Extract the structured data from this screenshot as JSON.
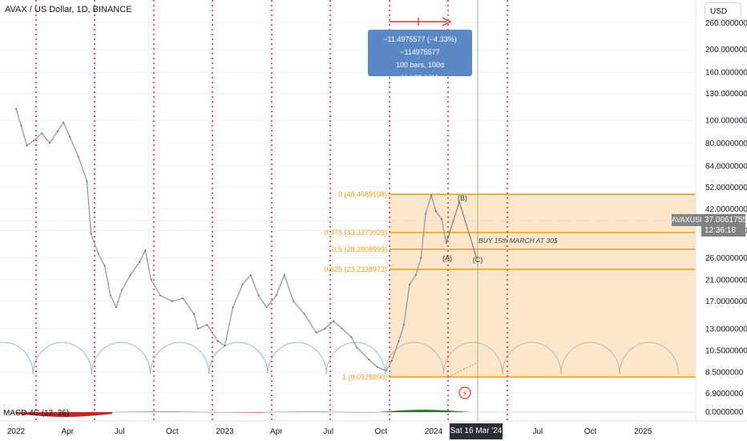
{
  "header": {
    "title": "AVAX / US Dollar, 1D, BINANCE",
    "currency_button": "USD"
  },
  "measure_tooltip": {
    "line1": "−11.4975577 (−4.33%) −114975577",
    "line2": "100 bars, 100d",
    "line3": "Vol 29.66M"
  },
  "price_tag": {
    "symbol": "AVAXUSD",
    "price": "37.0061755",
    "countdown": "12:36:18"
  },
  "indicator": {
    "label": "MACD 4C (12, 26)"
  },
  "date_tag": "Sat 16 Mar '24",
  "colors": {
    "cycle_line": "#e53935",
    "fib_fill": "#fde7cc",
    "fib_line": "#f59c1a",
    "arc": "#90b8e0",
    "arc_future": "#b5b5b5",
    "price_line": "#9a9a9a",
    "macd_pos": "#2e7d32",
    "macd_neg": "#c62828",
    "tooltip": "#5b88c5",
    "vertical_green": "#43a047"
  },
  "chart_data": {
    "type": "line",
    "scale": "log",
    "y_ticks": [
      "260.0000000",
      "200.0000000",
      "160.0000000",
      "130.0000000",
      "100.0000000",
      "80.0000000",
      "64.0000000",
      "52.0000000",
      "42.0000000",
      "34.0000000",
      "26.0000000",
      "21.0000000",
      "17.0000000",
      "13.0000000",
      "10.5000000",
      "8.5000000",
      "6.9000000"
    ],
    "macd_tick": "0.0000000",
    "x_ticks": [
      "2022",
      "Apr",
      "Jul",
      "Oct",
      "2023",
      "Apr",
      "Jul",
      "Oct",
      "2024",
      "Jul",
      "Oct",
      "2025"
    ],
    "price_series": [
      {
        "date": "2022-01-01",
        "close": 112
      },
      {
        "date": "2022-01-10",
        "close": 95
      },
      {
        "date": "2022-01-20",
        "close": 78
      },
      {
        "date": "2022-02-01",
        "close": 82
      },
      {
        "date": "2022-02-15",
        "close": 88
      },
      {
        "date": "2022-03-01",
        "close": 80
      },
      {
        "date": "2022-03-15",
        "close": 90
      },
      {
        "date": "2022-03-25",
        "close": 98
      },
      {
        "date": "2022-04-05",
        "close": 85
      },
      {
        "date": "2022-04-20",
        "close": 70
      },
      {
        "date": "2022-05-05",
        "close": 55
      },
      {
        "date": "2022-05-12",
        "close": 33
      },
      {
        "date": "2022-05-25",
        "close": 27
      },
      {
        "date": "2022-06-05",
        "close": 24
      },
      {
        "date": "2022-06-15",
        "close": 18
      },
      {
        "date": "2022-06-25",
        "close": 16
      },
      {
        "date": "2022-07-05",
        "close": 19
      },
      {
        "date": "2022-07-20",
        "close": 22
      },
      {
        "date": "2022-08-05",
        "close": 25
      },
      {
        "date": "2022-08-15",
        "close": 28
      },
      {
        "date": "2022-08-25",
        "close": 21
      },
      {
        "date": "2022-09-10",
        "close": 18
      },
      {
        "date": "2022-10-01",
        "close": 17
      },
      {
        "date": "2022-10-20",
        "close": 17.5
      },
      {
        "date": "2022-11-08",
        "close": 15
      },
      {
        "date": "2022-11-15",
        "close": 13
      },
      {
        "date": "2022-12-01",
        "close": 13.5
      },
      {
        "date": "2022-12-20",
        "close": 11.5
      },
      {
        "date": "2023-01-01",
        "close": 11
      },
      {
        "date": "2023-01-15",
        "close": 16
      },
      {
        "date": "2023-02-01",
        "close": 20
      },
      {
        "date": "2023-02-15",
        "close": 22
      },
      {
        "date": "2023-03-01",
        "close": 18
      },
      {
        "date": "2023-03-15",
        "close": 16
      },
      {
        "date": "2023-04-01",
        "close": 18
      },
      {
        "date": "2023-04-15",
        "close": 22
      },
      {
        "date": "2023-05-01",
        "close": 17
      },
      {
        "date": "2023-05-20",
        "close": 15
      },
      {
        "date": "2023-06-10",
        "close": 12.5
      },
      {
        "date": "2023-06-25",
        "close": 13
      },
      {
        "date": "2023-07-10",
        "close": 14
      },
      {
        "date": "2023-07-25",
        "close": 13
      },
      {
        "date": "2023-08-10",
        "close": 12
      },
      {
        "date": "2023-08-20",
        "close": 10.8
      },
      {
        "date": "2023-09-10",
        "close": 9.6
      },
      {
        "date": "2023-09-25",
        "close": 8.9
      },
      {
        "date": "2023-10-10",
        "close": 8.6
      },
      {
        "date": "2023-10-20",
        "close": 9.5
      },
      {
        "date": "2023-11-01",
        "close": 11.5
      },
      {
        "date": "2023-11-10",
        "close": 13.5
      },
      {
        "date": "2023-11-20",
        "close": 20
      },
      {
        "date": "2023-12-01",
        "close": 22
      },
      {
        "date": "2023-12-10",
        "close": 26
      },
      {
        "date": "2023-12-18",
        "close": 40
      },
      {
        "date": "2023-12-28",
        "close": 48
      },
      {
        "date": "2024-01-05",
        "close": 41
      },
      {
        "date": "2024-01-15",
        "close": 38
      },
      {
        "date": "2024-01-23",
        "close": 30
      }
    ],
    "projection": [
      {
        "date": "2024-01-23",
        "close": 30
      },
      {
        "date": "2024-02-15",
        "close": 45
      },
      {
        "date": "2024-03-16",
        "close": 26
      }
    ],
    "fib_levels": [
      {
        "label": "0 (48.4689108)",
        "ratio": 0,
        "price": 48.4689108
      },
      {
        "label": "0.375 (33.3279026)",
        "ratio": 0.375,
        "price": 33.3279026
      },
      {
        "label": "0.5 (28.2808999)",
        "ratio": 0.5,
        "price": 28.2808999
      },
      {
        "label": "0.625 (23.2338972)",
        "ratio": 0.625,
        "price": 23.2338972
      },
      {
        "label": "1 (8.0928890)",
        "ratio": 1,
        "price": 8.092889
      }
    ],
    "wave_labels": [
      "(B)",
      "(A)",
      "(C)"
    ],
    "annotation": "BUY 15th MARCH AT 30$"
  }
}
